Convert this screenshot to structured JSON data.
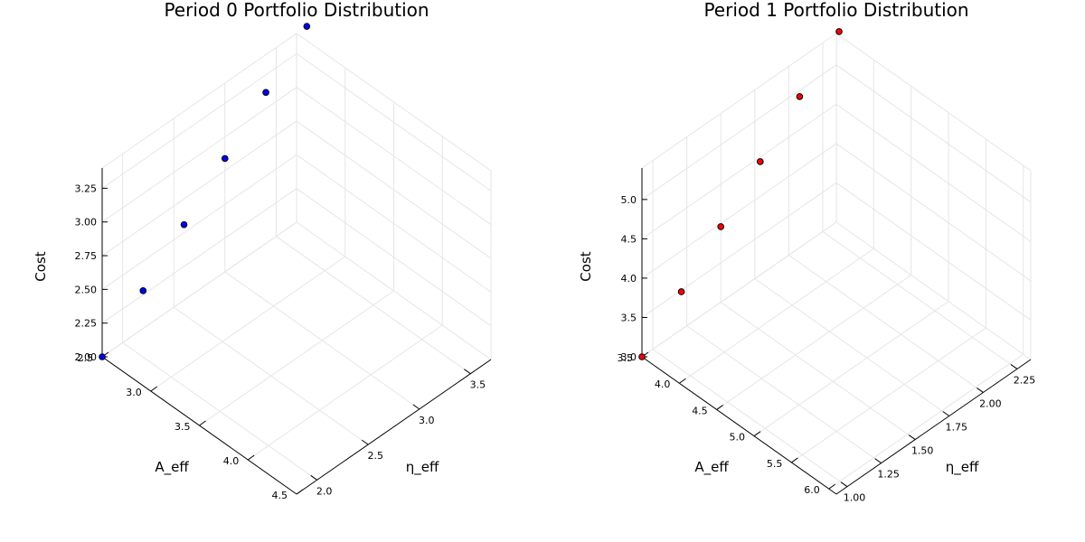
{
  "chart_data": [
    {
      "type": "scatter3d",
      "title": "Period 0 Portfolio Distribution",
      "xlabel": "A_eff",
      "ylabel": "η_eff",
      "zlabel": "Cost",
      "x_ticks": [
        "2.5",
        "3.0",
        "3.5",
        "4.0",
        "4.5"
      ],
      "y_ticks": [
        "2.0",
        "2.5",
        "3.0",
        "3.5"
      ],
      "z_ticks": [
        "2.00",
        "2.25",
        "2.50",
        "2.75",
        "3.00",
        "3.25"
      ],
      "xlim": [
        2.5,
        4.5
      ],
      "ylim": [
        1.8,
        3.7
      ],
      "zlim": [
        2.0,
        3.4
      ],
      "grid": true,
      "marker_color": "#0000ff",
      "points": [
        {
          "x": 2.5,
          "y": 1.8,
          "z": 2.0
        },
        {
          "x": 2.5,
          "y": 2.2,
          "z": 2.28
        },
        {
          "x": 2.5,
          "y": 2.6,
          "z": 2.56
        },
        {
          "x": 2.5,
          "y": 3.0,
          "z": 2.84
        },
        {
          "x": 2.5,
          "y": 3.4,
          "z": 3.12
        },
        {
          "x": 2.5,
          "y": 3.8,
          "z": 3.4
        }
      ]
    },
    {
      "type": "scatter3d",
      "title": "Period 1 Portfolio Distribution",
      "xlabel": "A_eff",
      "ylabel": "η_eff",
      "zlabel": "Cost",
      "x_ticks": [
        "3.5",
        "4.0",
        "4.5",
        "5.0",
        "5.5",
        "6.0"
      ],
      "y_ticks": [
        "1.00",
        "1.25",
        "1.50",
        "1.75",
        "2.00",
        "2.25"
      ],
      "z_ticks": [
        "3.0",
        "3.5",
        "4.0",
        "4.5",
        "5.0"
      ],
      "xlim": [
        3.5,
        6.1
      ],
      "ylim": [
        0.92,
        2.35
      ],
      "zlim": [
        3.0,
        5.4
      ],
      "grid": true,
      "marker_color": "#ff0000",
      "points": [
        {
          "x": 3.5,
          "y": 0.92,
          "z": 3.0
        },
        {
          "x": 3.5,
          "y": 1.21,
          "z": 3.48
        },
        {
          "x": 3.5,
          "y": 1.5,
          "z": 3.96
        },
        {
          "x": 3.5,
          "y": 1.79,
          "z": 4.44
        },
        {
          "x": 3.5,
          "y": 2.08,
          "z": 4.92
        },
        {
          "x": 3.5,
          "y": 2.37,
          "z": 5.4
        }
      ]
    }
  ]
}
